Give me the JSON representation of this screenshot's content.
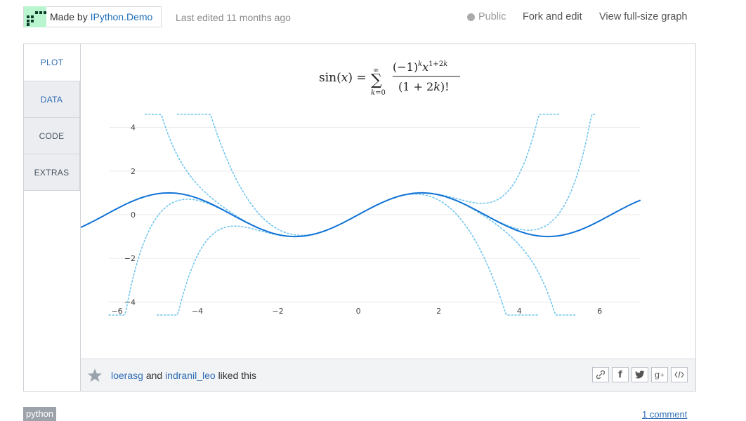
{
  "header": {
    "made_by_prefix": "Made by",
    "author": "IPython.Demo",
    "last_edited": "Last edited 11 months ago",
    "public_label": "Public",
    "fork_label": "Fork and edit",
    "view_full_label": "View full-size graph"
  },
  "tabs": [
    {
      "label": "PLOT"
    },
    {
      "label": "DATA"
    },
    {
      "label": "CODE"
    },
    {
      "label": "EXTRAS"
    }
  ],
  "footer": {
    "user1": "loerasg",
    "and": "and",
    "user2": "indranil_leo",
    "liked": "liked this",
    "share_icons": [
      "link-icon",
      "facebook-icon",
      "twitter-icon",
      "google-plus-icon",
      "embed-icon"
    ]
  },
  "bottom": {
    "tag": "python",
    "comments": "1 comment"
  },
  "chart_data": {
    "type": "line",
    "title": "sin(x) = Σ_{k=0}^{∞} (−1)^k x^{1+2k} / (1+2k)!",
    "xlim": [
      -6.9,
      7.0
    ],
    "ylim": [
      -4.6,
      4.6
    ],
    "x_ticks": [
      -6,
      -4,
      -2,
      0,
      2,
      4,
      6
    ],
    "y_ticks": [
      4,
      2,
      0,
      -2,
      -4
    ],
    "x_tick_labels": [
      "−6",
      "−4",
      "−2",
      "0",
      "2",
      "4",
      "6"
    ],
    "y_tick_labels": [
      "4",
      "2",
      "0",
      "−2",
      "−4"
    ],
    "grid": true,
    "colors": {
      "sin": "#1273d6",
      "approx": "#72c6ee"
    },
    "series": [
      {
        "x_range": [
          -6.9,
          7.0
        ],
        "function": "sin(x)",
        "style": "solid",
        "color": "#1273d6"
      },
      {
        "x_range": [
          -4.5,
          4.5
        ],
        "function": "x - x^3/6",
        "style": "dotted",
        "color": "#72c6ee"
      },
      {
        "x_range": [
          -5.0,
          5.0
        ],
        "function": "x - x^3/6 + x^5/120",
        "style": "dotted",
        "color": "#72c6ee"
      },
      {
        "x_range": [
          -5.3,
          5.4
        ],
        "function": "x - x^3/6 + x^5/120 - x^7/5040",
        "style": "dotted",
        "color": "#72c6ee"
      },
      {
        "x_range": [
          -6.2,
          5.9
        ],
        "function": "x - x^3/6 + x^5/120 - x^7/5040 + x^9/362880",
        "style": "dotted",
        "color": "#72c6ee"
      }
    ]
  }
}
